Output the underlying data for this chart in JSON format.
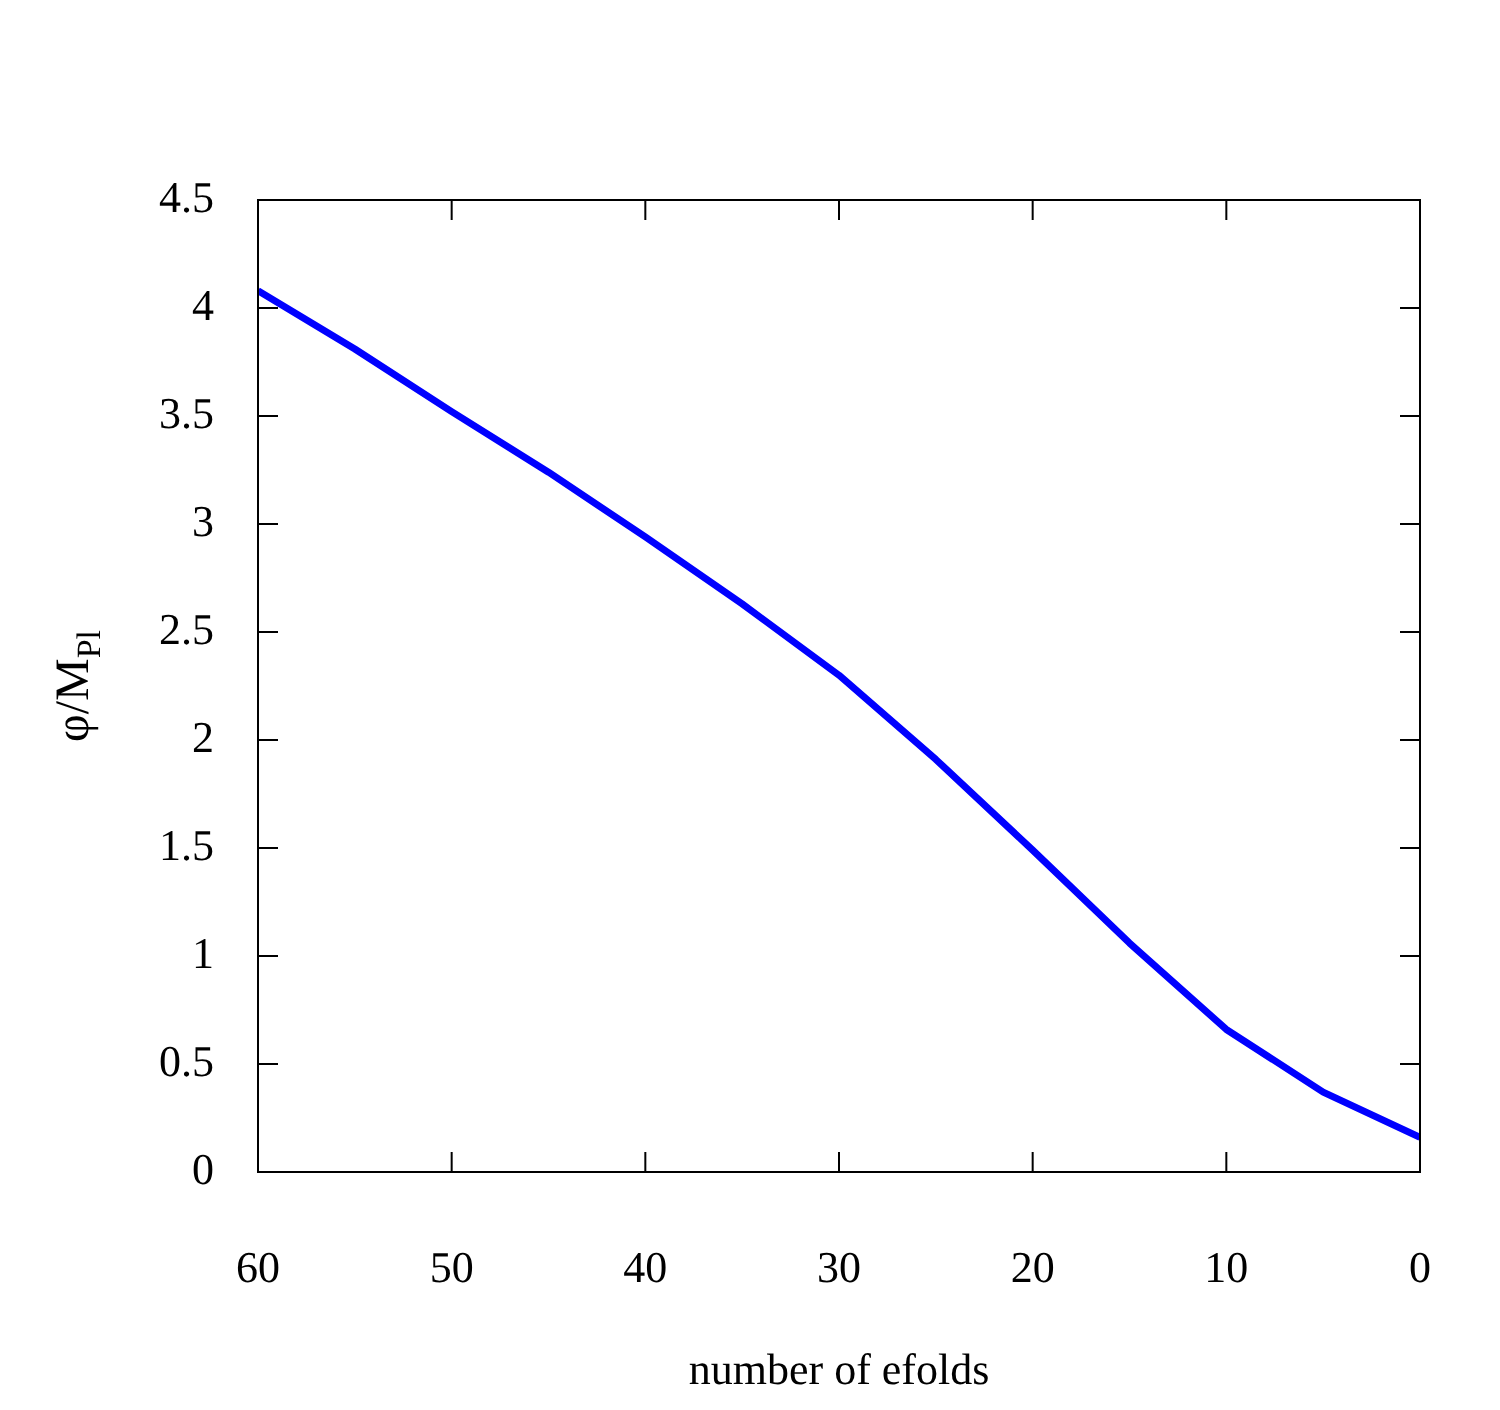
{
  "chart_data": {
    "type": "line",
    "xlabel": "number of efolds",
    "ylabel": "φ/M$_{Pl}$",
    "x": [
      60,
      55,
      50,
      45,
      40,
      35,
      30,
      25,
      20,
      15,
      10,
      5,
      0
    ],
    "series": [
      {
        "color": "#0000ff",
        "values": [
          4.08,
          3.81,
          3.52,
          3.24,
          2.94,
          2.63,
          2.3,
          1.91,
          1.49,
          1.06,
          0.66,
          0.37,
          0.16
        ]
      }
    ],
    "xlim": [
      60,
      0
    ],
    "xticks": [
      60,
      50,
      40,
      30,
      20,
      10,
      0
    ],
    "ylim": [
      0,
      4.5
    ],
    "yticks": [
      0,
      0.5,
      1,
      1.5,
      2,
      2.5,
      3,
      3.5,
      4,
      4.5
    ]
  }
}
